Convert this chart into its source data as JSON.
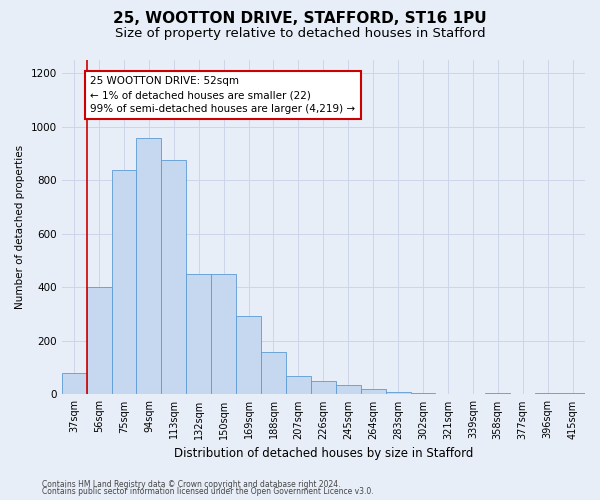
{
  "title1": "25, WOOTTON DRIVE, STAFFORD, ST16 1PU",
  "title2": "Size of property relative to detached houses in Stafford",
  "xlabel": "Distribution of detached houses by size in Stafford",
  "ylabel": "Number of detached properties",
  "categories": [
    "37sqm",
    "56sqm",
    "75sqm",
    "94sqm",
    "113sqm",
    "132sqm",
    "150sqm",
    "169sqm",
    "188sqm",
    "207sqm",
    "226sqm",
    "245sqm",
    "264sqm",
    "283sqm",
    "302sqm",
    "321sqm",
    "339sqm",
    "358sqm",
    "377sqm",
    "396sqm",
    "415sqm"
  ],
  "values": [
    80,
    400,
    840,
    960,
    875,
    450,
    450,
    295,
    160,
    70,
    50,
    35,
    20,
    10,
    5,
    1,
    2,
    6,
    1,
    6,
    6
  ],
  "bar_color": "#c5d8f0",
  "bar_edge_color": "#5b9bd5",
  "annotation_text_line1": "25 WOOTTON DRIVE: 52sqm",
  "annotation_text_line2": "← 1% of detached houses are smaller (22)",
  "annotation_text_line3": "99% of semi-detached houses are larger (4,219) →",
  "annotation_box_color": "#ffffff",
  "annotation_box_edge_color": "#cc0000",
  "vline_color": "#cc0000",
  "ylim": [
    0,
    1250
  ],
  "yticks": [
    0,
    200,
    400,
    600,
    800,
    1000,
    1200
  ],
  "grid_color": "#cdd5e8",
  "footer1": "Contains HM Land Registry data © Crown copyright and database right 2024.",
  "footer2": "Contains public sector information licensed under the Open Government Licence v3.0.",
  "background_color": "#e8eef8",
  "title1_fontsize": 11,
  "title2_fontsize": 9.5,
  "xlabel_fontsize": 8.5,
  "ylabel_fontsize": 7.5,
  "tick_fontsize": 7,
  "annotation_fontsize": 7.5,
  "footer_fontsize": 5.5
}
